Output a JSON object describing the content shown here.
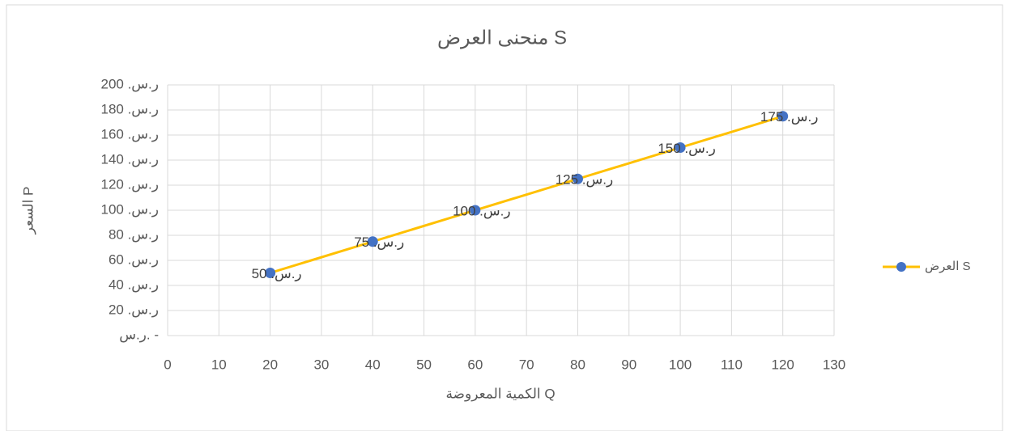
{
  "chart_data": {
    "type": "line",
    "title": "منحنى العرض S",
    "x_label": "الكمية المعروضة Q",
    "y_label": "السعر P",
    "x": [
      20,
      40,
      60,
      80,
      100,
      120
    ],
    "series": [
      {
        "name": "العرض S",
        "color": "#ffc000",
        "marker_color": "#4472c4",
        "values": [
          50,
          75,
          100,
          125,
          150,
          175
        ],
        "value_labels": [
          "ر.س. 50",
          "ر.س. 75",
          "ر.س. 100",
          "ر.س. 125",
          "ر.س. 150",
          "ر.س. 175"
        ]
      }
    ],
    "xlim": [
      0,
      130
    ],
    "xticks": [
      0,
      10,
      20,
      30,
      40,
      50,
      60,
      70,
      80,
      90,
      100,
      110,
      120,
      130
    ],
    "ylim": [
      0,
      200
    ],
    "yticks": [
      {
        "value": 0,
        "label": "ر.س. -"
      },
      {
        "value": 20,
        "label": "ر.س. 20"
      },
      {
        "value": 40,
        "label": "ر.س. 40"
      },
      {
        "value": 60,
        "label": "ر.س. 60"
      },
      {
        "value": 80,
        "label": "ر.س. 80"
      },
      {
        "value": 100,
        "label": "ر.س. 100"
      },
      {
        "value": 120,
        "label": "ر.س. 120"
      },
      {
        "value": 140,
        "label": "ر.س. 140"
      },
      {
        "value": 160,
        "label": "ر.س. 160"
      },
      {
        "value": 180,
        "label": "ر.س. 180"
      },
      {
        "value": 200,
        "label": "ر.س. 200"
      }
    ],
    "grid": true,
    "legend": "right"
  }
}
